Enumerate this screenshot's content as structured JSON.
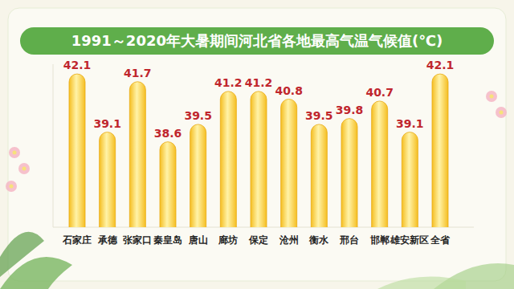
{
  "chart_data": {
    "type": "bar",
    "title": "1991～2020年大暑期间河北省各地最高气温气候值(℃)",
    "categories": [
      "石家庄",
      "承德",
      "张家口",
      "秦皇岛",
      "唐山",
      "廊坊",
      "保定",
      "沧州",
      "衡水",
      "邢台",
      "邯郸",
      "雄安新区",
      "全省"
    ],
    "values": [
      42.1,
      39.1,
      41.7,
      38.6,
      39.5,
      41.2,
      41.2,
      40.8,
      39.5,
      39.8,
      40.7,
      39.1,
      42.1
    ],
    "color": "#f5be22",
    "ylim": [
      34.2,
      42.6
    ],
    "grid": false,
    "data_labels": true,
    "tick_labels": "x"
  }
}
